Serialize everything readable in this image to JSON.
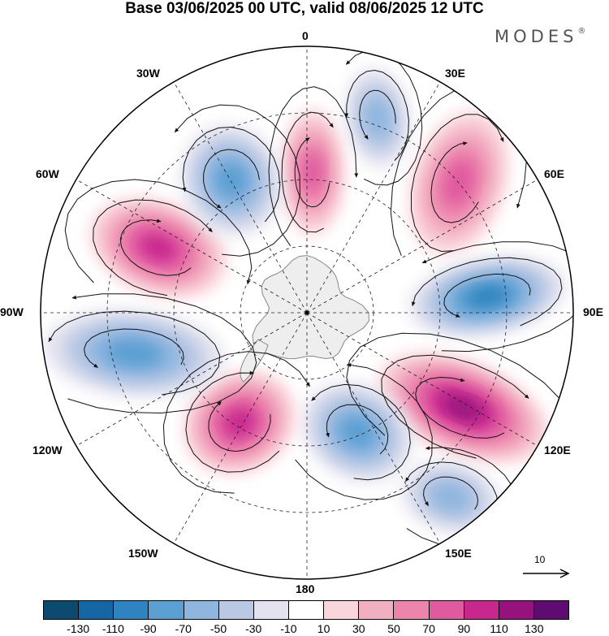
{
  "title": "Base 03/06/2025 00 UTC, valid 08/06/2025 12 UTC",
  "brand": {
    "name": "MODES",
    "mark": "®"
  },
  "map": {
    "projection": "south-polar-stereographic",
    "background_color": "#ffffff",
    "land_color": "#eeeeee",
    "coast_color": "#888888",
    "grid_color": "#222222",
    "streamline_color": "#111111",
    "longitude_labels": [
      {
        "name": "lon-label-0",
        "text": "0"
      },
      {
        "name": "lon-label-30e",
        "text": "30E"
      },
      {
        "name": "lon-label-60e",
        "text": "60E"
      },
      {
        "name": "lon-label-90e",
        "text": "90E"
      },
      {
        "name": "lon-label-120e",
        "text": "120E"
      },
      {
        "name": "lon-label-150e",
        "text": "150E"
      },
      {
        "name": "lon-label-180",
        "text": "180"
      },
      {
        "name": "lon-label-150w",
        "text": "150W"
      },
      {
        "name": "lon-label-120w",
        "text": "120W"
      },
      {
        "name": "lon-label-90w",
        "text": "90W"
      },
      {
        "name": "lon-label-60w",
        "text": "60W"
      },
      {
        "name": "lon-label-30w",
        "text": "30W"
      }
    ],
    "anomaly_centers": [
      {
        "name": "anomaly-positive-0",
        "sign": "positive",
        "value": 80
      },
      {
        "name": "anomaly-positive-45e",
        "sign": "positive",
        "value": 90
      },
      {
        "name": "anomaly-negative-75e",
        "sign": "negative",
        "value": -110
      },
      {
        "name": "anomaly-positive-115e",
        "sign": "positive",
        "value": 120
      },
      {
        "name": "anomaly-negative-145e",
        "sign": "negative",
        "value": -90
      },
      {
        "name": "anomaly-negative-160e",
        "sign": "negative",
        "value": -60
      },
      {
        "name": "anomaly-positive-145w",
        "sign": "positive",
        "value": 100
      },
      {
        "name": "anomaly-negative-100w",
        "sign": "negative",
        "value": -90
      },
      {
        "name": "anomaly-positive-65w",
        "sign": "positive",
        "value": 110
      },
      {
        "name": "anomaly-negative-35w",
        "sign": "negative",
        "value": -90
      },
      {
        "name": "anomaly-negative-15e",
        "sign": "negative",
        "value": -60
      }
    ]
  },
  "reference_vector": {
    "value": "10"
  },
  "colorbar": {
    "colors": [
      "#0c4a70",
      "#1566a2",
      "#2d84c0",
      "#5b9fd3",
      "#8fb6df",
      "#bac8e4",
      "#e3e3ef",
      "#ffffff",
      "#f9d6dc",
      "#f3afc2",
      "#ec85ab",
      "#e05aa0",
      "#c8288e",
      "#96127e",
      "#5e0c72"
    ],
    "ticks": [
      "-130",
      "-110",
      "-90",
      "-70",
      "-50",
      "-30",
      "-10",
      "10",
      "30",
      "50",
      "70",
      "90",
      "110",
      "130"
    ]
  }
}
